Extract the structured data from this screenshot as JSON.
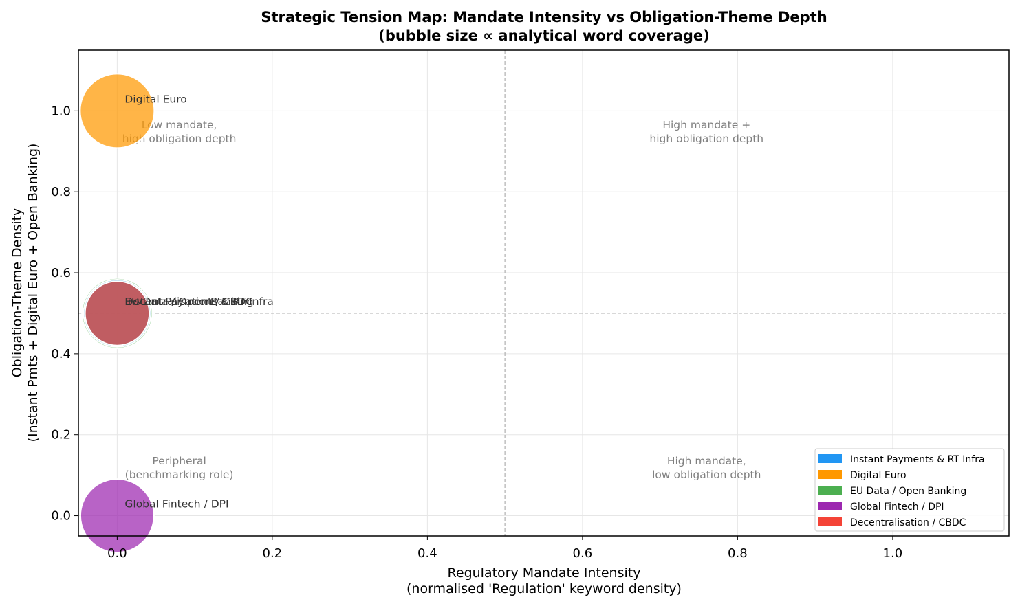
{
  "chart_data": {
    "type": "scatter",
    "title": "Strategic Tension Map: Mandate Intensity vs Obligation-Theme Depth",
    "subtitle": "(bubble size ∝ analytical word coverage)",
    "xlabel": "Regulatory Mandate Intensity",
    "xlabel_sub": "(normalised 'Regulation' keyword density)",
    "ylabel": "Obligation-Theme Density",
    "ylabel_sub": "(Instant Pmts + Digital Euro + Open Banking)",
    "xlim": [
      -0.05,
      1.15
    ],
    "ylim": [
      -0.05,
      1.15
    ],
    "xticks": [
      0.0,
      0.2,
      0.4,
      0.6,
      0.8,
      1.0
    ],
    "xtick_labels": [
      "0.0",
      "0.2",
      "0.4",
      "0.6",
      "0.8",
      "1.0"
    ],
    "yticks": [
      0.0,
      0.2,
      0.4,
      0.6,
      0.8,
      1.0
    ],
    "ytick_labels": [
      "0.0",
      "0.2",
      "0.4",
      "0.6",
      "0.8",
      "1.0"
    ],
    "grid": true,
    "reference_lines": {
      "x": 0.5,
      "y": 0.5
    },
    "legend_placement": "lower-right",
    "series": [
      {
        "name": "Instant Payments & RT Infra",
        "x": 0.0,
        "y": 0.5,
        "size": 0.82,
        "color": "#2196F3"
      },
      {
        "name": "Digital Euro",
        "x": 0.0,
        "y": 1.0,
        "size": 1.0,
        "color": "#FF9800"
      },
      {
        "name": "EU Data / Open Banking",
        "x": 0.0,
        "y": 0.5,
        "size": 0.9,
        "color": "#4CAF50"
      },
      {
        "name": "Global Fintech / DPI",
        "x": 0.0,
        "y": 0.0,
        "size": 0.98,
        "color": "#9C27B0"
      },
      {
        "name": "Decentralisation / CBDC",
        "x": 0.0,
        "y": 0.5,
        "size": 0.75,
        "color": "#F44336"
      }
    ],
    "quadrant_labels": [
      {
        "line1": "Low mandate,",
        "line2": "high obligation depth",
        "x": 0.08,
        "y": 0.95
      },
      {
        "line1": "High mandate +",
        "line2": "high obligation depth",
        "x": 0.76,
        "y": 0.95
      },
      {
        "line1": "Peripheral",
        "line2": "(benchmarking role)",
        "x": 0.08,
        "y": 0.12
      },
      {
        "line1": "High mandate,",
        "line2": "low obligation depth",
        "x": 0.76,
        "y": 0.12
      }
    ]
  }
}
